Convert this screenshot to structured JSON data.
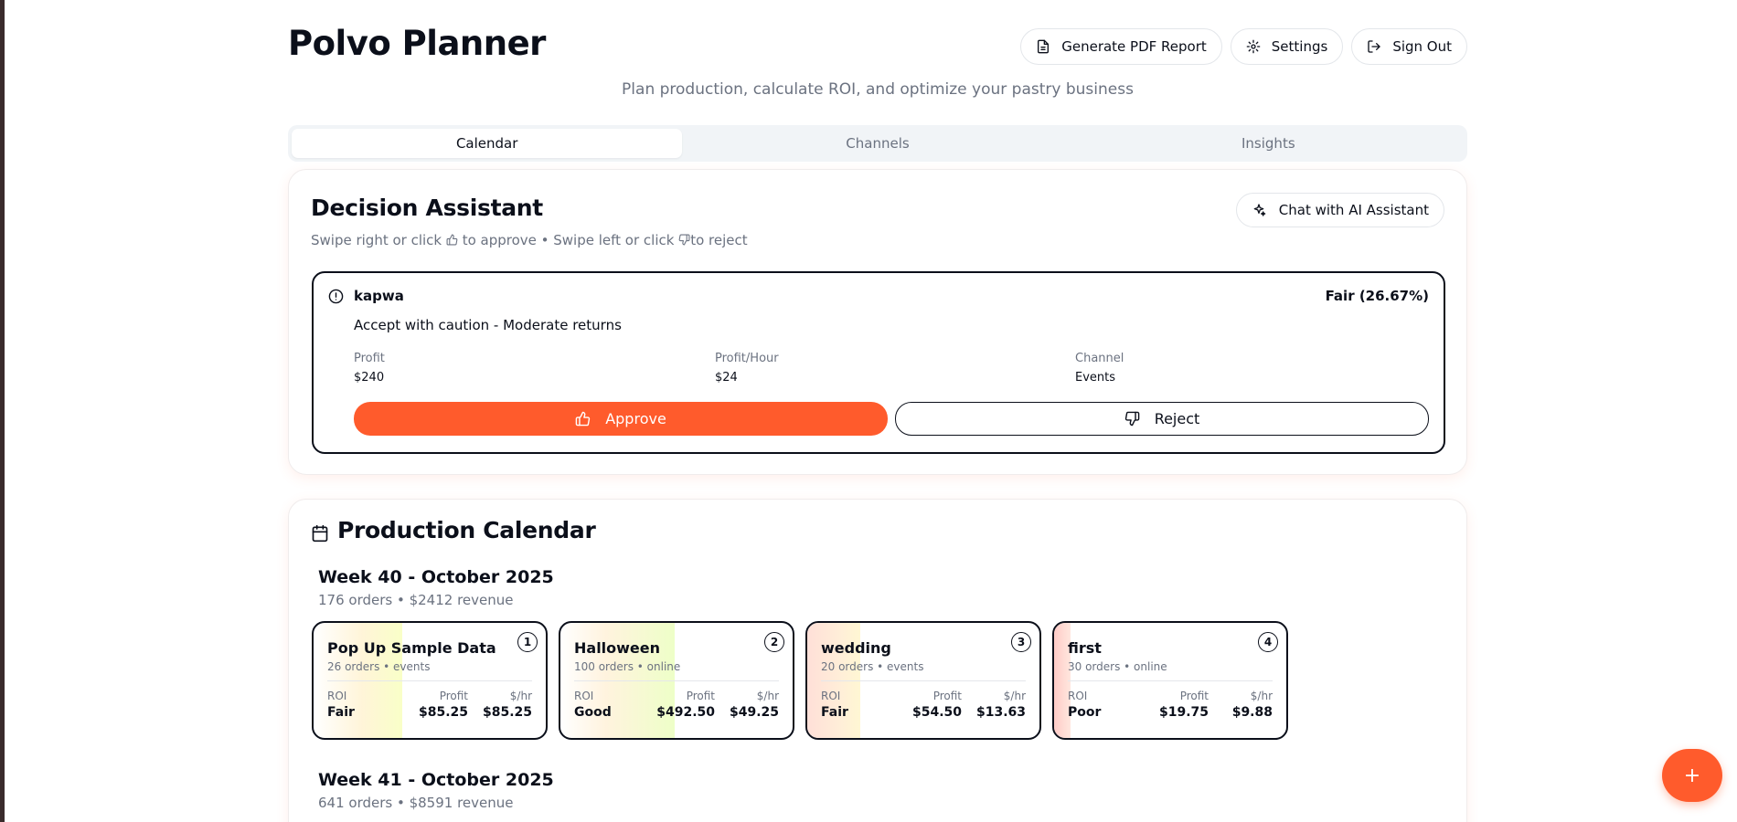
{
  "header": {
    "title": "Polvo Planner",
    "subtitle": "Plan production, calculate ROI, and optimize your pastry business",
    "actions": {
      "pdf_label": "Generate PDF Report",
      "settings_label": "Settings",
      "signout_label": "Sign Out"
    }
  },
  "tabs": [
    {
      "label": "Calendar",
      "active": true
    },
    {
      "label": "Channels",
      "active": false
    },
    {
      "label": "Insights",
      "active": false
    }
  ],
  "decision": {
    "title": "Decision Assistant",
    "chat_label": "Chat with AI Assistant",
    "instructions": {
      "part1": "Swipe right or click",
      "part2": "to approve • Swipe left or click",
      "part3": "to reject"
    },
    "proposal": {
      "name": "kapwa",
      "rating": "Fair (26.67%)",
      "recommendation": "Accept with caution - Moderate returns",
      "metrics": [
        {
          "label": "Profit",
          "value": "$240"
        },
        {
          "label": "Profit/Hour",
          "value": "$24"
        },
        {
          "label": "Channel",
          "value": "Events"
        }
      ],
      "approve_label": "Approve",
      "reject_label": "Reject"
    }
  },
  "calendar": {
    "title": "Production Calendar",
    "stat_labels": {
      "roi": "ROI",
      "profit": "Profit",
      "rate": "$/hr"
    },
    "weeks": [
      {
        "title": "Week 40 - October 2025",
        "summary": "176 orders • $2412 revenue",
        "orders": [
          {
            "num": "1",
            "name": "Pop Up Sample Data",
            "meta": "26 orders • events",
            "roi": "Fair",
            "profit": "$85.25",
            "rate": "$85.25",
            "gradient": "yellow"
          },
          {
            "num": "2",
            "name": "Halloween",
            "meta": "100 orders • online",
            "roi": "Good",
            "profit": "$492.50",
            "rate": "$49.25",
            "gradient": "green"
          },
          {
            "num": "3",
            "name": "wedding",
            "meta": "20 orders • events",
            "roi": "Fair",
            "profit": "$54.50",
            "rate": "$13.63",
            "gradient": "orange"
          },
          {
            "num": "4",
            "name": "first",
            "meta": "30 orders • online",
            "roi": "Poor",
            "profit": "$19.75",
            "rate": "$9.88",
            "gradient": "red"
          }
        ]
      },
      {
        "title": "Week 41 - October 2025",
        "summary": "641 orders • $8591 revenue"
      }
    ]
  },
  "fab_label": "+",
  "colors": {
    "accent": "#ff5b2c",
    "text": "#0b0f1a",
    "muted": "#6b7280"
  }
}
